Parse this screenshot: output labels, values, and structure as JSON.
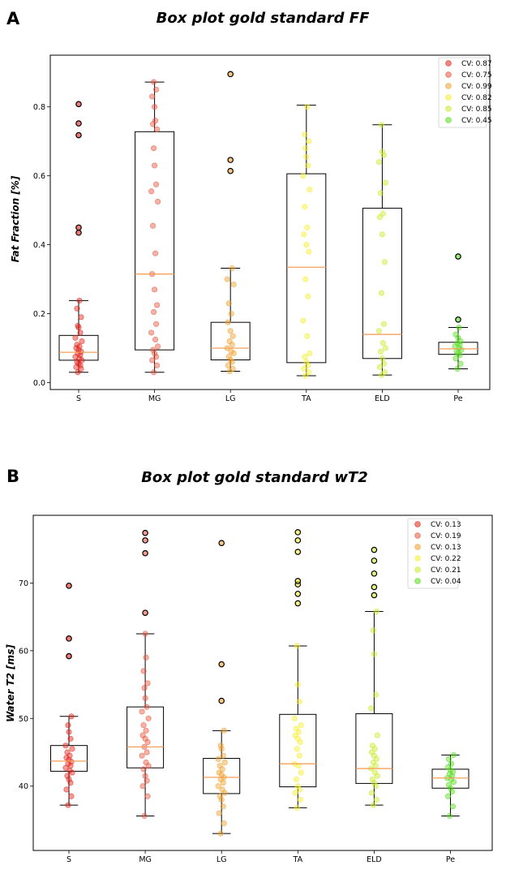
{
  "chart_data": [
    {
      "panel": "A",
      "type": "box",
      "title": "Box plot gold standard FF",
      "xlabel": "",
      "ylabel": "Fat Fraction [%]",
      "ylim": [
        -0.02,
        0.95
      ],
      "yticks": [
        0.0,
        0.2,
        0.4,
        0.6,
        0.8
      ],
      "ytick_labels": [
        "0.0",
        "0.2",
        "0.4",
        "0.6",
        "0.8"
      ],
      "legend_position": "top-right",
      "categories": [
        "S",
        "MG",
        "LG",
        "TA",
        "ELD",
        "Pe"
      ],
      "colors": [
        "#e3231a",
        "#e8553c",
        "#f0a02c",
        "#f5ee2a",
        "#c9ea28",
        "#55dc1c"
      ],
      "legend": [
        "CV: 0.87",
        "CV: 0.75",
        "CV: 0.99",
        "CV: 0.82",
        "CV: 0.85",
        "CV: 0.45"
      ],
      "boxes": [
        {
          "min": 0.03,
          "q1": 0.065,
          "median": 0.088,
          "q3": 0.137,
          "max": 0.238,
          "outliers": [
            0.435,
            0.45,
            0.718,
            0.752,
            0.808
          ]
        },
        {
          "min": 0.03,
          "q1": 0.095,
          "median": 0.315,
          "q3": 0.728,
          "max": 0.872,
          "outliers": []
        },
        {
          "min": 0.033,
          "q1": 0.066,
          "median": 0.1,
          "q3": 0.175,
          "max": 0.332,
          "outliers": [
            0.614,
            0.646,
            0.895
          ]
        },
        {
          "min": 0.02,
          "q1": 0.058,
          "median": 0.335,
          "q3": 0.606,
          "max": 0.805,
          "outliers": []
        },
        {
          "min": 0.022,
          "q1": 0.07,
          "median": 0.14,
          "q3": 0.506,
          "max": 0.748,
          "outliers": []
        },
        {
          "min": 0.04,
          "q1": 0.082,
          "median": 0.098,
          "q3": 0.117,
          "max": 0.16,
          "outliers": [
            0.183,
            0.366
          ]
        }
      ],
      "points": [
        [
          0.03,
          0.04,
          0.045,
          0.05,
          0.055,
          0.06,
          0.065,
          0.07,
          0.075,
          0.08,
          0.085,
          0.09,
          0.095,
          0.1,
          0.105,
          0.11,
          0.12,
          0.13,
          0.145,
          0.16,
          0.165,
          0.19,
          0.215,
          0.238
        ],
        [
          0.03,
          0.05,
          0.065,
          0.075,
          0.085,
          0.095,
          0.105,
          0.125,
          0.145,
          0.17,
          0.205,
          0.225,
          0.27,
          0.315,
          0.375,
          0.455,
          0.525,
          0.555,
          0.575,
          0.63,
          0.68,
          0.735,
          0.75,
          0.76,
          0.8,
          0.83,
          0.85,
          0.872
        ],
        [
          0.033,
          0.04,
          0.05,
          0.06,
          0.066,
          0.075,
          0.085,
          0.09,
          0.1,
          0.11,
          0.12,
          0.135,
          0.15,
          0.175,
          0.2,
          0.23,
          0.285,
          0.3,
          0.332
        ],
        [
          0.02,
          0.03,
          0.04,
          0.05,
          0.06,
          0.075,
          0.085,
          0.135,
          0.18,
          0.25,
          0.3,
          0.38,
          0.4,
          0.43,
          0.45,
          0.51,
          0.56,
          0.6,
          0.63,
          0.655,
          0.68,
          0.7,
          0.72,
          0.8
        ],
        [
          0.022,
          0.03,
          0.045,
          0.055,
          0.07,
          0.09,
          0.1,
          0.115,
          0.15,
          0.17,
          0.26,
          0.35,
          0.43,
          0.48,
          0.49,
          0.55,
          0.58,
          0.64,
          0.66,
          0.67,
          0.748
        ],
        [
          0.04,
          0.055,
          0.07,
          0.08,
          0.085,
          0.09,
          0.095,
          0.1,
          0.105,
          0.11,
          0.115,
          0.12,
          0.13,
          0.14,
          0.16
        ]
      ]
    },
    {
      "panel": "B",
      "type": "box",
      "title": "Box plot gold standard wT2",
      "xlabel": "",
      "ylabel": "Water T2 [ms]",
      "ylim": [
        30.5,
        80.0
      ],
      "yticks": [
        40,
        50,
        60,
        70
      ],
      "ytick_labels": [
        "40",
        "50",
        "60",
        "70"
      ],
      "legend_position": "top-right",
      "categories": [
        "S",
        "MG",
        "LG",
        "TA",
        "ELD",
        "Pe"
      ],
      "colors": [
        "#e3231a",
        "#e8553c",
        "#f0a02c",
        "#f5ee2a",
        "#c9ea28",
        "#55dc1c"
      ],
      "legend": [
        "CV: 0.13",
        "CV: 0.19",
        "CV: 0.13",
        "CV: 0.22",
        "CV: 0.21",
        "CV: 0.04"
      ],
      "boxes": [
        {
          "min": 37.2,
          "q1": 42.2,
          "median": 43.7,
          "q3": 46.0,
          "max": 50.3,
          "outliers": [
            59.2,
            61.8,
            69.6
          ]
        },
        {
          "min": 35.6,
          "q1": 42.7,
          "median": 45.8,
          "q3": 51.7,
          "max": 62.5,
          "outliers": [
            65.6,
            74.4,
            76.3,
            77.4
          ]
        },
        {
          "min": 33.0,
          "q1": 38.9,
          "median": 41.3,
          "q3": 44.1,
          "max": 48.2,
          "outliers": [
            52.6,
            58.0,
            75.9
          ]
        },
        {
          "min": 36.8,
          "q1": 39.9,
          "median": 43.3,
          "q3": 50.6,
          "max": 60.7,
          "outliers": [
            67.0,
            68.4,
            69.8,
            70.3,
            74.6,
            76.3,
            77.5
          ]
        },
        {
          "min": 37.2,
          "q1": 40.4,
          "median": 42.6,
          "q3": 50.7,
          "max": 65.8,
          "outliers": [
            68.2,
            69.4,
            71.4,
            73.3,
            74.9
          ]
        },
        {
          "min": 35.6,
          "q1": 39.7,
          "median": 41.2,
          "q3": 42.5,
          "max": 44.6,
          "outliers": []
        }
      ],
      "points": [
        [
          37.2,
          38.5,
          39.5,
          40.5,
          41.0,
          41.5,
          42.0,
          42.3,
          42.7,
          43.0,
          43.3,
          43.6,
          43.9,
          44.2,
          44.5,
          45.0,
          45.5,
          46.0,
          47.0,
          48.0,
          49.0,
          50.3
        ],
        [
          35.6,
          38.5,
          40.0,
          40.8,
          41.5,
          42.5,
          43.0,
          43.5,
          44.5,
          45.0,
          45.8,
          46.5,
          47.0,
          47.5,
          48.2,
          49.0,
          50.0,
          51.0,
          51.7,
          53.0,
          54.5,
          55.2,
          57.0,
          59.0,
          62.5
        ],
        [
          33.0,
          34.5,
          36.0,
          37.0,
          38.0,
          38.5,
          39.0,
          39.5,
          40.0,
          40.5,
          41.0,
          41.3,
          41.7,
          42.0,
          42.5,
          43.0,
          43.5,
          44.0,
          44.5,
          45.5,
          46.0,
          48.2
        ],
        [
          36.8,
          38.0,
          39.0,
          39.5,
          40.0,
          41.0,
          42.0,
          43.0,
          43.3,
          44.5,
          45.5,
          46.5,
          47.0,
          47.5,
          48.0,
          48.5,
          49.0,
          50.0,
          52.5,
          55.0,
          60.7
        ],
        [
          37.2,
          38.0,
          39.0,
          40.0,
          40.5,
          41.0,
          41.5,
          42.0,
          42.6,
          43.0,
          43.5,
          44.0,
          44.5,
          45.0,
          45.5,
          46.0,
          47.5,
          51.5,
          53.5,
          59.5,
          63.0,
          65.8
        ],
        [
          35.6,
          37.0,
          38.5,
          39.2,
          39.7,
          40.2,
          40.6,
          41.0,
          41.2,
          41.5,
          41.8,
          42.1,
          42.4,
          42.8,
          43.3,
          44.0,
          44.6
        ]
      ]
    }
  ]
}
